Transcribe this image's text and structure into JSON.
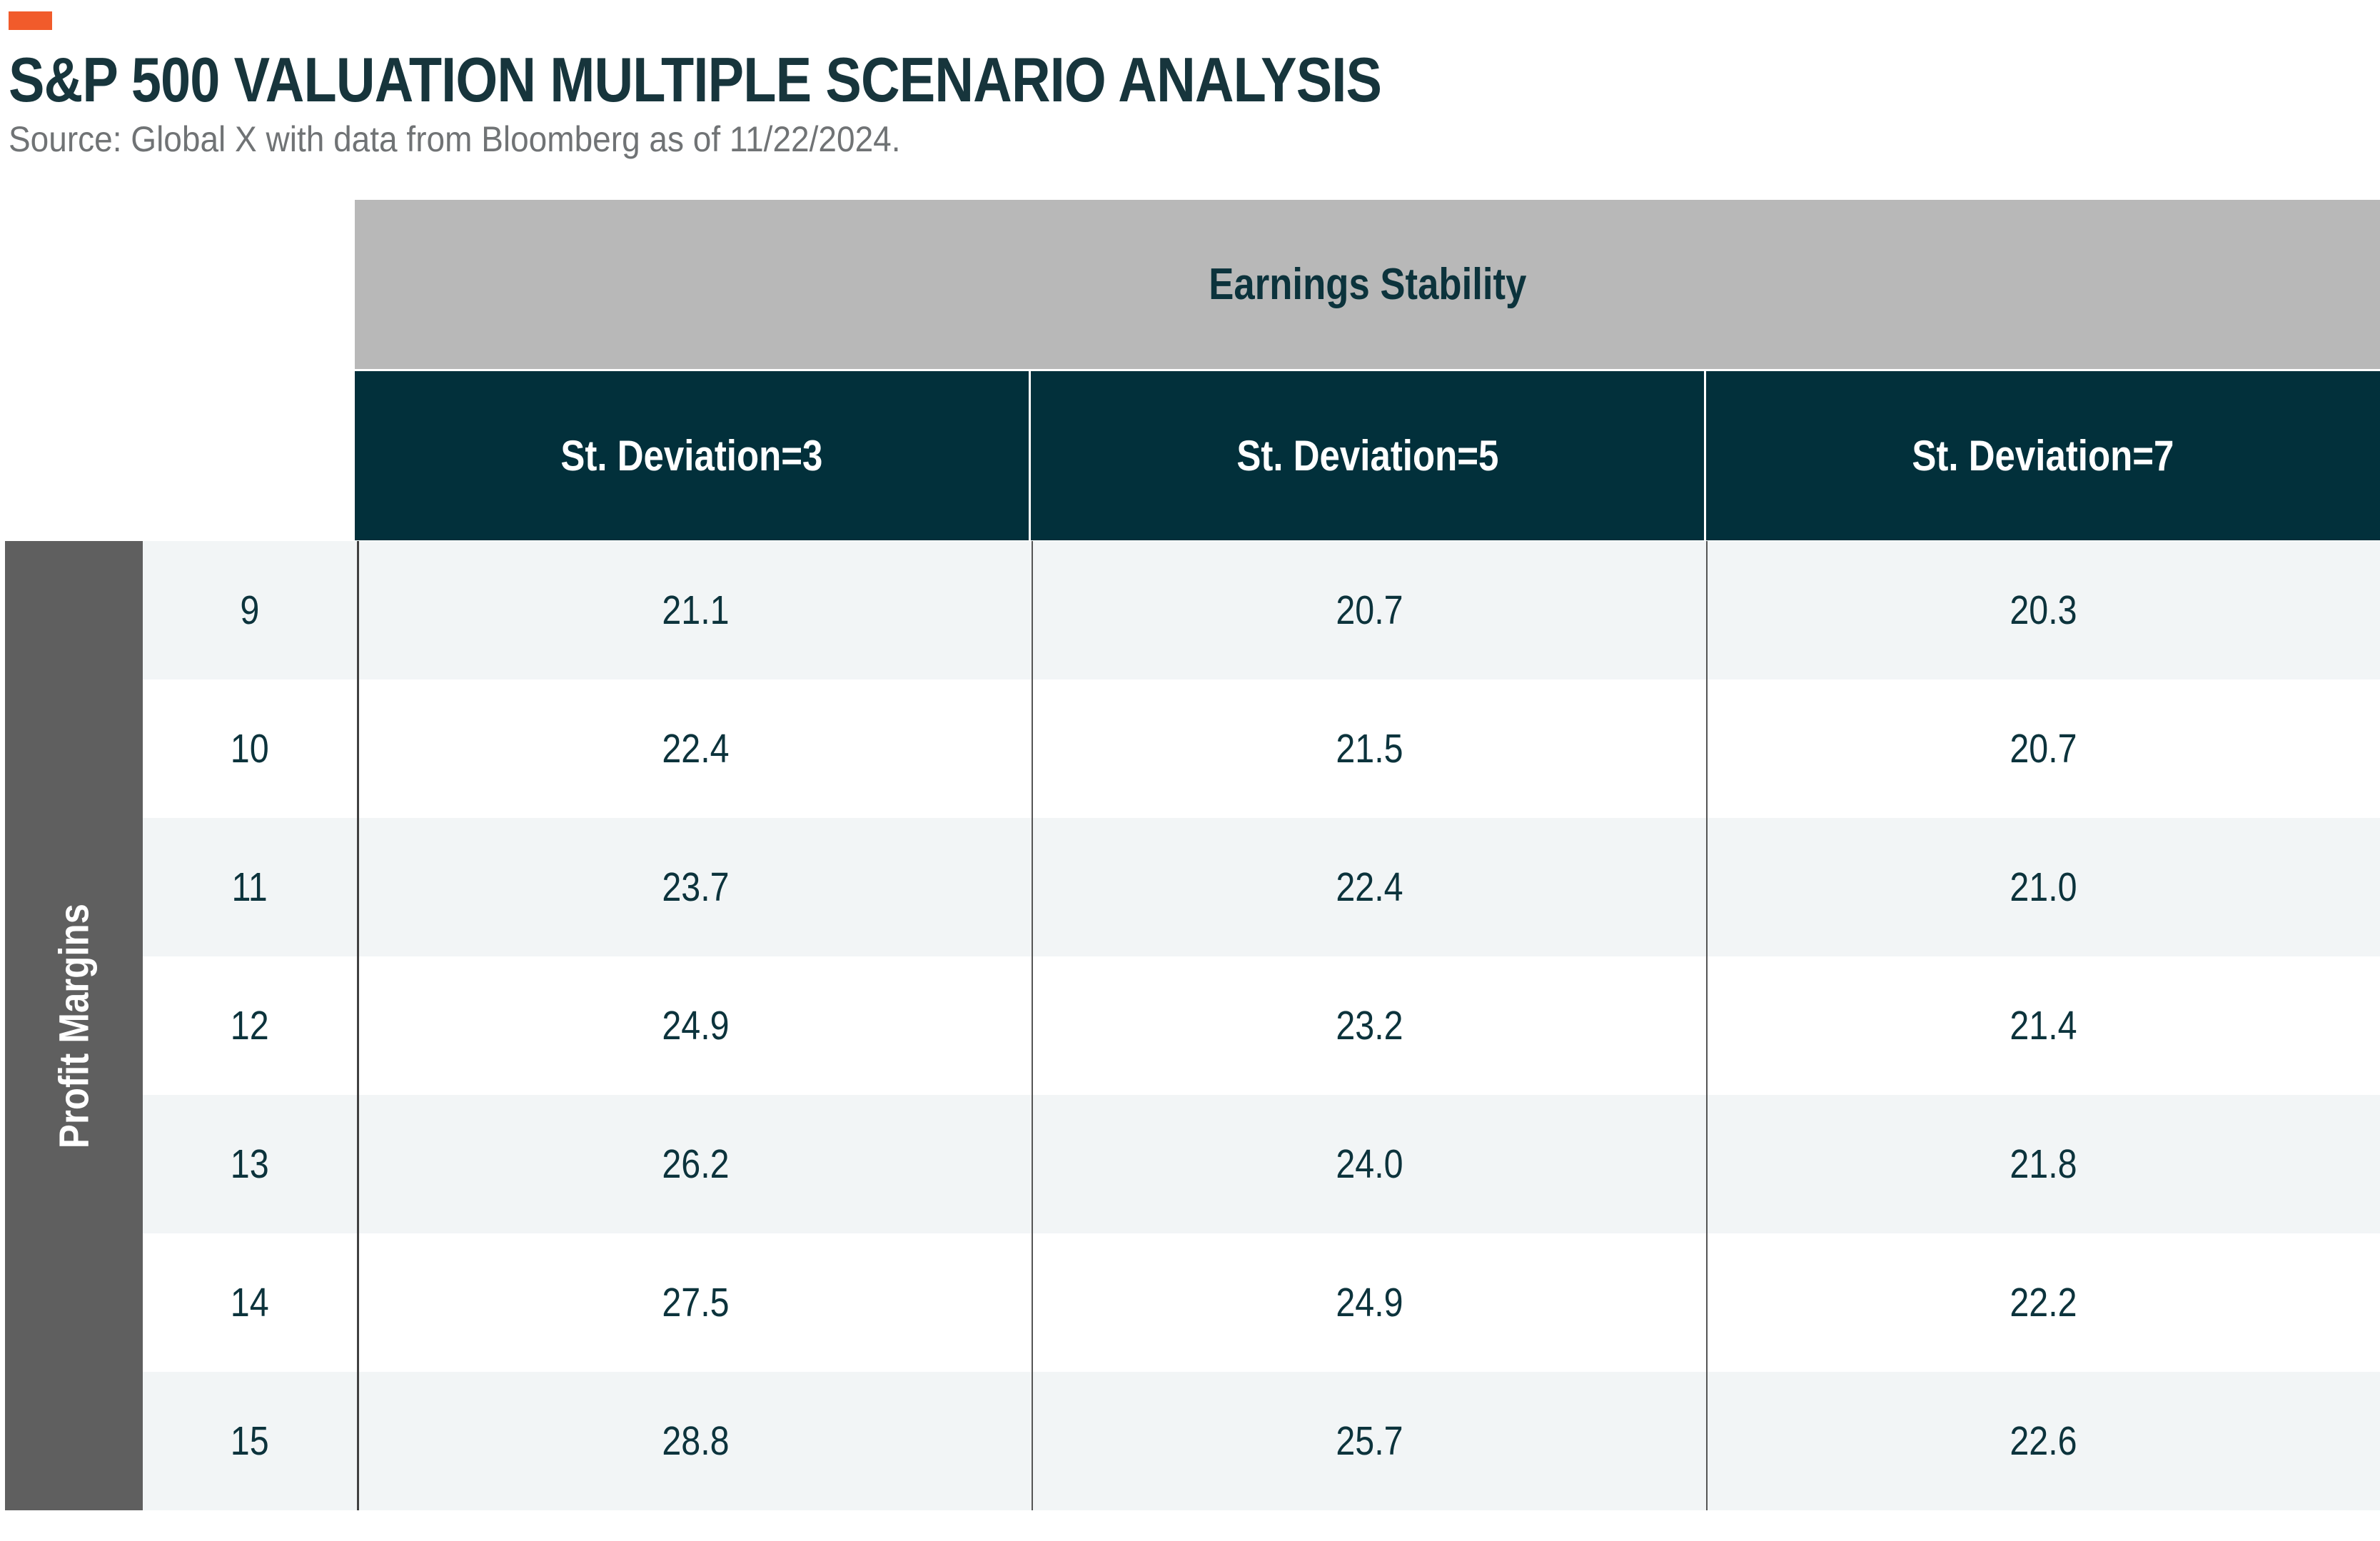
{
  "page": {
    "title": "S&P 500 VALUATION MULTIPLE SCENARIO ANALYSIS",
    "source": "Source: Global X with data from Bloomberg as of 11/22/2024."
  },
  "colors": {
    "accent_orange": "#f15b2b",
    "title_teal": "#17353c",
    "header_teal": "#02303b",
    "earnings_band_gray": "#b8b8b8",
    "profit_band_gray": "#5f5f5f",
    "row_light": "#f2f5f6",
    "row_white": "#ffffff",
    "value_text": "#0c333c",
    "source_gray": "#707375"
  },
  "chart_data": {
    "type": "table",
    "title": "S&P 500 Valuation Multiple Scenario Analysis",
    "subtitle": "Source: Global X with data from Bloomberg as of 11/22/2024.",
    "column_group_label": "Earnings Stability",
    "row_group_label": "Profit Margins",
    "columns": [
      "St. Deviation=3",
      "St. Deviation=5",
      "St. Deviation=7"
    ],
    "rows": [
      "9",
      "10",
      "11",
      "12",
      "13",
      "14",
      "15"
    ],
    "values": [
      [
        "21.1",
        "20.7",
        "20.3"
      ],
      [
        "22.4",
        "21.5",
        "20.7"
      ],
      [
        "23.7",
        "22.4",
        "21.0"
      ],
      [
        "24.9",
        "23.2",
        "21.4"
      ],
      [
        "26.2",
        "24.0",
        "21.8"
      ],
      [
        "27.5",
        "24.9",
        "22.2"
      ],
      [
        "28.8",
        "25.7",
        "22.6"
      ]
    ],
    "layout": {
      "grid": "alternating-row-shading",
      "column_header_background": "dark-teal",
      "group_header_background": "gray",
      "row_group_orientation": "vertical-left"
    }
  }
}
